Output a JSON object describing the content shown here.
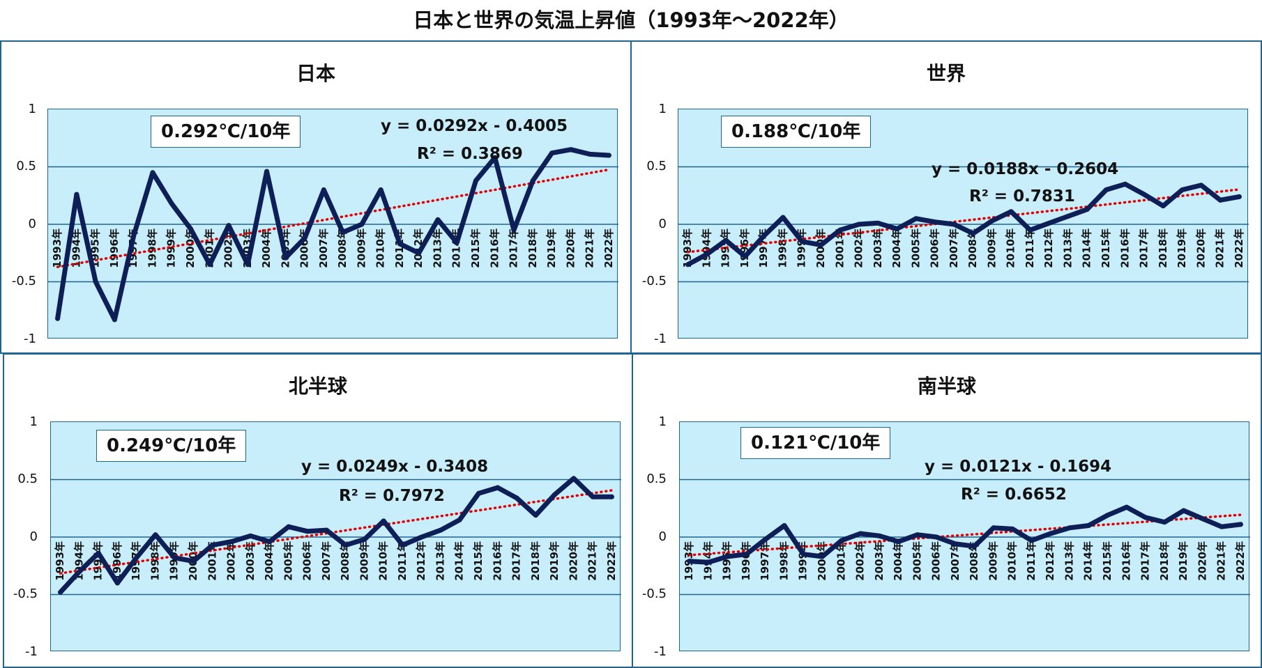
{
  "title": "日本と世界の気温上昇値（1993年～2022年）",
  "y_ticks": [
    "1",
    "0.5",
    "0",
    "-0.5",
    "-1"
  ],
  "chart_data": [
    {
      "type": "line",
      "title": "日本",
      "rate_label": "0.292℃/10年",
      "equation": "y = 0.0292x - 0.4005",
      "r_squared": "R² = 0.3869",
      "ylim": [
        -1,
        1
      ],
      "grid": true,
      "categories": [
        "1993年",
        "1994年",
        "1995年",
        "1996年",
        "1997年",
        "1998年",
        "1999年",
        "2000年",
        "2001年",
        "2002年",
        "2003年",
        "2004年",
        "2005年",
        "2006年",
        "2007年",
        "2008年",
        "2009年",
        "2010年",
        "2011年",
        "2012年",
        "2013年",
        "2014年",
        "2015年",
        "2016年",
        "2017年",
        "2018年",
        "2019年",
        "2020年",
        "2021年",
        "2022年"
      ],
      "values": [
        -0.82,
        0.26,
        -0.5,
        -0.83,
        -0.1,
        0.45,
        0.18,
        -0.04,
        -0.35,
        -0.01,
        -0.35,
        0.46,
        -0.29,
        -0.12,
        0.3,
        -0.07,
        0.0,
        0.3,
        -0.17,
        -0.25,
        0.04,
        -0.16,
        0.38,
        0.58,
        -0.05,
        0.38,
        0.62,
        0.65,
        0.61,
        0.6
      ],
      "trend": {
        "slope": 0.0292,
        "intercept": -0.4005
      }
    },
    {
      "type": "line",
      "title": "世界",
      "rate_label": "0.188℃/10年",
      "equation": "y = 0.0188x - 0.2604",
      "r_squared": "R² = 0.7831",
      "ylim": [
        -1,
        1
      ],
      "grid": true,
      "categories": [
        "1993年",
        "1994年",
        "1995年",
        "1996年",
        "1997年",
        "1998年",
        "1999年",
        "2000年",
        "2001年",
        "2002年",
        "2003年",
        "2004年",
        "2005年",
        "2006年",
        "2007年",
        "2008年",
        "2009年",
        "2010年",
        "2011年",
        "2012年",
        "2013年",
        "2014年",
        "2015年",
        "2016年",
        "2017年",
        "2018年",
        "2019年",
        "2020年",
        "2021年",
        "2022年"
      ],
      "values": [
        -0.35,
        -0.26,
        -0.14,
        -0.28,
        -0.1,
        0.06,
        -0.15,
        -0.18,
        -0.05,
        0.0,
        0.01,
        -0.04,
        0.05,
        0.02,
        0.0,
        -0.08,
        0.03,
        0.11,
        -0.05,
        0.01,
        0.07,
        0.13,
        0.3,
        0.35,
        0.26,
        0.16,
        0.3,
        0.34,
        0.21,
        0.24
      ],
      "trend": {
        "slope": 0.0188,
        "intercept": -0.2604
      }
    },
    {
      "type": "line",
      "title": "北半球",
      "rate_label": "0.249℃/10年",
      "equation": "y = 0.0249x - 0.3408",
      "r_squared": "R² = 0.7972",
      "ylim": [
        -1,
        1
      ],
      "grid": true,
      "categories": [
        "1993年",
        "1994年",
        "1995年",
        "1996年",
        "1997年",
        "1998年",
        "1999年",
        "2000年",
        "2001年",
        "2002年",
        "2003年",
        "2004年",
        "2005年",
        "2006年",
        "2007年",
        "2008年",
        "2009年",
        "2010年",
        "2011年",
        "2012年",
        "2013年",
        "2014年",
        "2015年",
        "2016年",
        "2017年",
        "2018年",
        "2019年",
        "2020年",
        "2021年",
        "2022年"
      ],
      "values": [
        -0.48,
        -0.3,
        -0.14,
        -0.4,
        -0.18,
        0.02,
        -0.18,
        -0.21,
        -0.07,
        -0.04,
        0.01,
        -0.04,
        0.09,
        0.05,
        0.06,
        -0.07,
        -0.02,
        0.14,
        -0.07,
        0.0,
        0.06,
        0.15,
        0.38,
        0.43,
        0.34,
        0.19,
        0.37,
        0.51,
        0.35,
        0.35
      ],
      "trend": {
        "slope": 0.0249,
        "intercept": -0.3408
      }
    },
    {
      "type": "line",
      "title": "南半球",
      "rate_label": "0.121℃/10年",
      "equation": "y = 0.0121x - 0.1694",
      "r_squared": "R² = 0.6652",
      "ylim": [
        -1,
        1
      ],
      "grid": true,
      "categories": [
        "1993年",
        "1994年",
        "1995年",
        "1996年",
        "1997年",
        "1998年",
        "1999年",
        "2000年",
        "2001年",
        "2002年",
        "2003年",
        "2004年",
        "2005年",
        "2006年",
        "2007年",
        "2008年",
        "2009年",
        "2010年",
        "2011年",
        "2012年",
        "2013年",
        "2014年",
        "2015年",
        "2016年",
        "2017年",
        "2018年",
        "2019年",
        "2020年",
        "2021年",
        "2022年"
      ],
      "values": [
        -0.21,
        -0.22,
        -0.17,
        -0.15,
        -0.02,
        0.1,
        -0.15,
        -0.17,
        -0.03,
        0.03,
        0.01,
        -0.04,
        0.02,
        0.0,
        -0.06,
        -0.08,
        0.08,
        0.07,
        -0.03,
        0.03,
        0.08,
        0.1,
        0.19,
        0.26,
        0.17,
        0.13,
        0.23,
        0.16,
        0.09,
        0.11
      ],
      "trend": {
        "slope": 0.0121,
        "intercept": -0.1694
      }
    }
  ]
}
